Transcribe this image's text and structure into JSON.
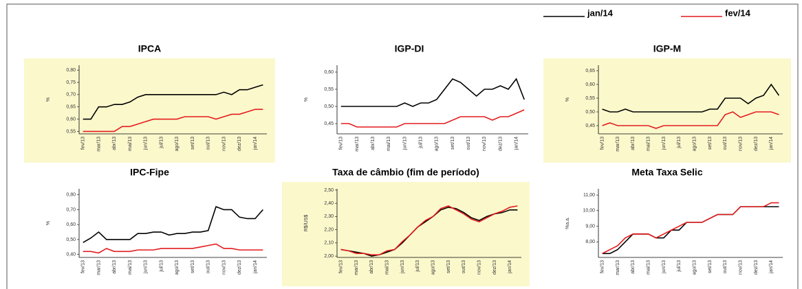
{
  "chart_data": [
    {
      "type": "line",
      "title": "IPCA",
      "ylabel": "%",
      "background": "#fbf8cc",
      "categories": [
        "fev/13",
        null,
        "mar/13",
        null,
        "abr/13",
        null,
        "mai/13",
        null,
        "jun/13",
        null,
        "jul/13",
        null,
        "ago/13",
        null,
        "set/13",
        null,
        "out/13",
        null,
        "nov/13",
        null,
        "dez/13",
        null,
        "jan/14",
        null
      ],
      "series": [
        {
          "name": "jan/14",
          "color": "#000000",
          "values": [
            0.6,
            0.6,
            0.65,
            0.65,
            0.66,
            0.66,
            0.67,
            0.69,
            0.7,
            0.7,
            0.7,
            0.7,
            0.7,
            0.7,
            0.7,
            0.7,
            0.7,
            0.7,
            0.71,
            0.7,
            0.72,
            0.72,
            0.73,
            0.74
          ]
        },
        {
          "name": "fev/14",
          "color": "#e41a1c",
          "values": [
            0.55,
            0.55,
            0.55,
            0.55,
            0.55,
            0.57,
            0.57,
            0.58,
            0.59,
            0.6,
            0.6,
            0.6,
            0.6,
            0.61,
            0.61,
            0.61,
            0.61,
            0.6,
            0.61,
            0.62,
            0.62,
            0.63,
            0.64,
            0.64
          ]
        }
      ],
      "ylim": [
        0.54,
        0.82
      ],
      "yticks": [
        {
          "value": 0.55,
          "label": "0,55"
        },
        {
          "value": 0.6,
          "label": "0,60"
        },
        {
          "value": 0.65,
          "label": "0,65"
        },
        {
          "value": 0.7,
          "label": "0,70"
        },
        {
          "value": 0.75,
          "label": "0,75"
        },
        {
          "value": 0.8,
          "label": "0,80"
        }
      ]
    },
    {
      "type": "line",
      "title": "IGP-DI",
      "ylabel": "%",
      "categories": [
        "fev/13",
        null,
        "mar/13",
        null,
        "abr/13",
        null,
        "mai/13",
        null,
        "jun/13",
        null,
        "jul/13",
        null,
        "ago/13",
        null,
        "set/13",
        null,
        "out/13",
        null,
        "nov/13",
        null,
        "dez/13",
        null,
        "jan/14",
        null
      ],
      "series": [
        {
          "color": "#000000",
          "values": [
            0.5,
            0.5,
            0.5,
            0.5,
            0.5,
            0.5,
            0.5,
            0.5,
            0.51,
            0.5,
            0.51,
            0.51,
            0.52,
            0.55,
            0.58,
            0.57,
            0.55,
            0.53,
            0.55,
            0.55,
            0.56,
            0.55,
            0.58,
            0.52
          ]
        },
        {
          "color": "#e41a1c",
          "values": [
            0.45,
            0.45,
            0.44,
            0.44,
            0.44,
            0.44,
            0.44,
            0.44,
            0.45,
            0.45,
            0.45,
            0.45,
            0.45,
            0.45,
            0.46,
            0.47,
            0.47,
            0.47,
            0.47,
            0.46,
            0.47,
            0.47,
            0.48,
            0.49
          ]
        }
      ],
      "ylim": [
        0.42,
        0.62
      ],
      "yticks": [
        {
          "value": 0.45,
          "label": "0,45"
        },
        {
          "value": 0.5,
          "label": "0,50"
        },
        {
          "value": 0.55,
          "label": "0,55"
        },
        {
          "value": 0.6,
          "label": "0,60"
        }
      ]
    },
    {
      "type": "line",
      "title": "IGP-M",
      "ylabel": "%",
      "background": "#fbf8cc",
      "categories": [
        "fev/13",
        null,
        "mar/13",
        null,
        "abr/13",
        null,
        "mai/13",
        null,
        "jun/13",
        null,
        "jul/13",
        null,
        "ago/13",
        null,
        "set/13",
        null,
        "out/13",
        null,
        "nov/13",
        null,
        "dez/13",
        null,
        "jan/14",
        null
      ],
      "series": [
        {
          "color": "#000000",
          "values": [
            0.51,
            0.5,
            0.5,
            0.51,
            0.5,
            0.5,
            0.5,
            0.5,
            0.5,
            0.5,
            0.5,
            0.5,
            0.5,
            0.5,
            0.51,
            0.51,
            0.55,
            0.55,
            0.55,
            0.53,
            0.55,
            0.56,
            0.6,
            0.56
          ]
        },
        {
          "color": "#e41a1c",
          "values": [
            0.45,
            0.46,
            0.45,
            0.45,
            0.45,
            0.45,
            0.45,
            0.44,
            0.45,
            0.45,
            0.45,
            0.45,
            0.45,
            0.45,
            0.45,
            0.45,
            0.49,
            0.5,
            0.48,
            0.49,
            0.5,
            0.5,
            0.5,
            0.49
          ]
        }
      ],
      "ylim": [
        0.42,
        0.67
      ],
      "yticks": [
        {
          "value": 0.45,
          "label": "0,45"
        },
        {
          "value": 0.5,
          "label": "0,50"
        },
        {
          "value": 0.55,
          "label": "0,55"
        },
        {
          "value": 0.6,
          "label": "0,60"
        },
        {
          "value": 0.65,
          "label": "0,65"
        }
      ]
    },
    {
      "type": "line",
      "title": "IPC-Fipe",
      "ylabel": "%",
      "categories": [
        "fev/13",
        null,
        "mar/13",
        null,
        "abr/13",
        null,
        "mai/13",
        null,
        "jun/13",
        null,
        "jul/13",
        null,
        "ago/13",
        null,
        "set/13",
        null,
        "out/13",
        null,
        "nov/13",
        null,
        "dez/13",
        null,
        "jan/14",
        null
      ],
      "series": [
        {
          "color": "#000000",
          "values": [
            0.48,
            0.51,
            0.55,
            0.5,
            0.5,
            0.5,
            0.5,
            0.54,
            0.54,
            0.55,
            0.55,
            0.53,
            0.54,
            0.54,
            0.55,
            0.55,
            0.56,
            0.72,
            0.7,
            0.7,
            0.65,
            0.64,
            0.64,
            0.7
          ]
        },
        {
          "color": "#e41a1c",
          "values": [
            0.42,
            0.42,
            0.41,
            0.44,
            0.42,
            0.42,
            0.42,
            0.43,
            0.43,
            0.43,
            0.44,
            0.44,
            0.44,
            0.44,
            0.44,
            0.45,
            0.46,
            0.47,
            0.44,
            0.44,
            0.43,
            0.43,
            0.43,
            0.43
          ]
        }
      ],
      "ylim": [
        0.38,
        0.84
      ],
      "yticks": [
        {
          "value": 0.4,
          "label": "0,40"
        },
        {
          "value": 0.5,
          "label": "0,50"
        },
        {
          "value": 0.6,
          "label": "0,60"
        },
        {
          "value": 0.7,
          "label": "0,70"
        },
        {
          "value": 0.8,
          "label": "0,80"
        }
      ]
    },
    {
      "type": "line",
      "title": "Taxa de câmbio (fim de período)",
      "ylabel": "R$/US$",
      "background": "#fbf8cc",
      "categories": [
        "fev/13",
        null,
        "mar/13",
        null,
        "abr/13",
        null,
        "mai/13",
        null,
        "jun/13",
        null,
        "jul/13",
        null,
        "ago/13",
        null,
        "set/13",
        null,
        "out/13",
        null,
        "nov/13",
        null,
        "dez/13",
        null,
        "jan/14",
        null
      ],
      "series": [
        {
          "color": "#000000",
          "values": [
            2.05,
            2.04,
            2.03,
            2.02,
            2.0,
            2.01,
            2.03,
            2.05,
            2.1,
            2.16,
            2.22,
            2.26,
            2.3,
            2.35,
            2.37,
            2.36,
            2.33,
            2.29,
            2.27,
            2.3,
            2.32,
            2.33,
            2.35,
            2.35
          ]
        },
        {
          "color": "#e41a1c",
          "values": [
            2.05,
            2.04,
            2.02,
            2.02,
            2.01,
            2.01,
            2.04,
            2.05,
            2.11,
            2.16,
            2.22,
            2.27,
            2.3,
            2.36,
            2.38,
            2.35,
            2.32,
            2.28,
            2.26,
            2.29,
            2.32,
            2.34,
            2.37,
            2.38
          ]
        }
      ],
      "ylim": [
        1.99,
        2.51
      ],
      "yticks": [
        {
          "value": 2,
          "label": "2,00"
        },
        {
          "value": 2.1,
          "label": "2,10"
        },
        {
          "value": 2.2,
          "label": "2,20"
        },
        {
          "value": 2.3,
          "label": "2,30"
        },
        {
          "value": 2.4,
          "label": "2,40"
        },
        {
          "value": 2.5,
          "label": "2,50"
        }
      ]
    },
    {
      "type": "line",
      "title": "Meta Taxa Selic",
      "ylabel": "%a.a.",
      "categories": [
        "fev/13",
        null,
        "mar/13",
        null,
        "abr/13",
        null,
        "mai/13",
        null,
        "jun/13",
        null,
        "jul/13",
        null,
        "ago/13",
        null,
        "set/13",
        null,
        "out/13",
        null,
        "nov/13",
        null,
        "dez/13",
        null,
        "jan/14",
        null
      ],
      "series": [
        {
          "color": "#000000",
          "values": [
            7.25,
            7.25,
            7.5,
            8.0,
            8.5,
            8.5,
            8.5,
            8.25,
            8.25,
            8.75,
            8.75,
            9.25,
            9.25,
            9.25,
            9.5,
            9.75,
            9.75,
            9.75,
            10.25,
            10.25,
            10.25,
            10.25,
            10.25,
            10.25
          ]
        },
        {
          "color": "#e41a1c",
          "values": [
            7.25,
            7.5,
            7.75,
            8.25,
            8.5,
            8.5,
            8.5,
            8.25,
            8.5,
            8.75,
            9.0,
            9.25,
            9.25,
            9.25,
            9.5,
            9.75,
            9.75,
            9.75,
            10.25,
            10.25,
            10.25,
            10.25,
            10.5,
            10.5
          ]
        }
      ],
      "ylim": [
        7,
        11.4
      ],
      "yticks": [
        {
          "value": 8,
          "label": "8,00"
        },
        {
          "value": 9,
          "label": "9,00"
        },
        {
          "value": 10,
          "label": "10,00"
        },
        {
          "value": 11,
          "label": "11,00"
        }
      ]
    }
  ]
}
